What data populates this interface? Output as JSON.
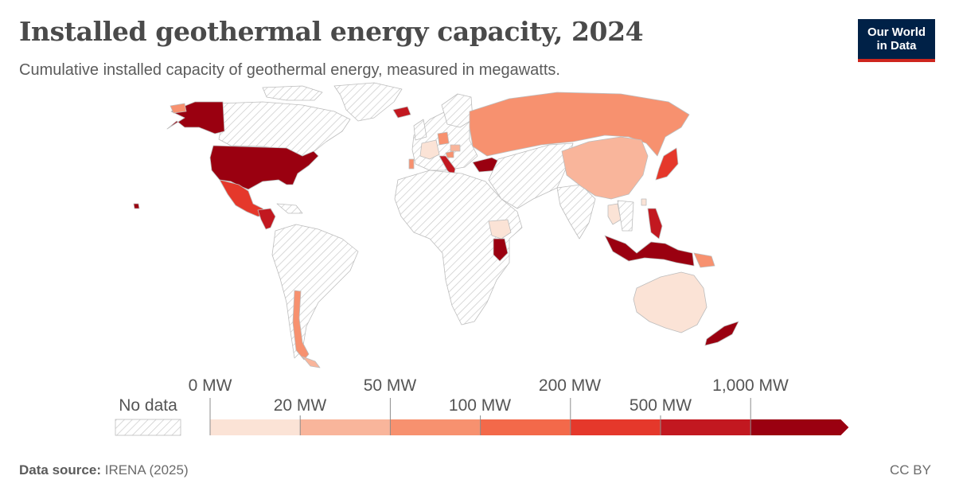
{
  "title": "Installed geothermal energy capacity, 2024",
  "subtitle": "Cumulative installed capacity of geothermal energy, measured in megawatts.",
  "logo": {
    "line1": "Our World",
    "line2": "in Data"
  },
  "legend": {
    "no_data_label": "No data",
    "upper_ticks": [
      "0 MW",
      "50 MW",
      "200 MW",
      "1,000 MW"
    ],
    "lower_ticks": [
      "20 MW",
      "100 MW",
      "500 MW"
    ],
    "bins": [
      {
        "from": "0 MW",
        "to": "20 MW",
        "color": "#fbe3d6"
      },
      {
        "from": "20 MW",
        "to": "50 MW",
        "color": "#f9b59b"
      },
      {
        "from": "50 MW",
        "to": "100 MW",
        "color": "#f7916f"
      },
      {
        "from": "100 MW",
        "to": "200 MW",
        "color": "#f3694a"
      },
      {
        "from": "200 MW",
        "to": "500 MW",
        "color": "#e5382b"
      },
      {
        "from": "500 MW",
        "to": "1,000 MW",
        "color": "#c21820"
      },
      {
        "from": "1,000 MW",
        "to": "",
        "color": "#9a0010"
      }
    ]
  },
  "map_countries": [
    {
      "name": "United States",
      "bin": 6
    },
    {
      "name": "Alaska (United States)",
      "bin": 6
    },
    {
      "name": "Mexico",
      "bin": 5
    },
    {
      "name": "Central America",
      "bin": 5
    },
    {
      "name": "Chile",
      "bin": 2
    },
    {
      "name": "Argentina",
      "bin": 1
    },
    {
      "name": "Iceland",
      "bin": 5
    },
    {
      "name": "Portugal",
      "bin": 2
    },
    {
      "name": "France",
      "bin": 0
    },
    {
      "name": "Germany",
      "bin": 2
    },
    {
      "name": "Italy",
      "bin": 5
    },
    {
      "name": "Croatia",
      "bin": 2
    },
    {
      "name": "Hungary",
      "bin": 1
    },
    {
      "name": "Turkey",
      "bin": 6
    },
    {
      "name": "Russia",
      "bin": 2
    },
    {
      "name": "China",
      "bin": 1
    },
    {
      "name": "Japan",
      "bin": 4
    },
    {
      "name": "Taiwan",
      "bin": 0
    },
    {
      "name": "Thailand",
      "bin": 0
    },
    {
      "name": "Philippines",
      "bin": 5
    },
    {
      "name": "Indonesia",
      "bin": 6
    },
    {
      "name": "Papua New Guinea",
      "bin": 2
    },
    {
      "name": "Ethiopia",
      "bin": 0
    },
    {
      "name": "Kenya",
      "bin": 6
    },
    {
      "name": "Australia",
      "bin": 0
    },
    {
      "name": "New Zealand",
      "bin": 6
    },
    {
      "name": "Hawaii (United States)",
      "bin": 6
    }
  ],
  "colors": {
    "no_data_fill": "#ffffff",
    "no_data_hatch": "#c9c9c9",
    "border": "#c8c8c8"
  },
  "footer": {
    "source_label": "Data source:",
    "source_value": "IRENA (2025)",
    "license": "CC BY"
  }
}
